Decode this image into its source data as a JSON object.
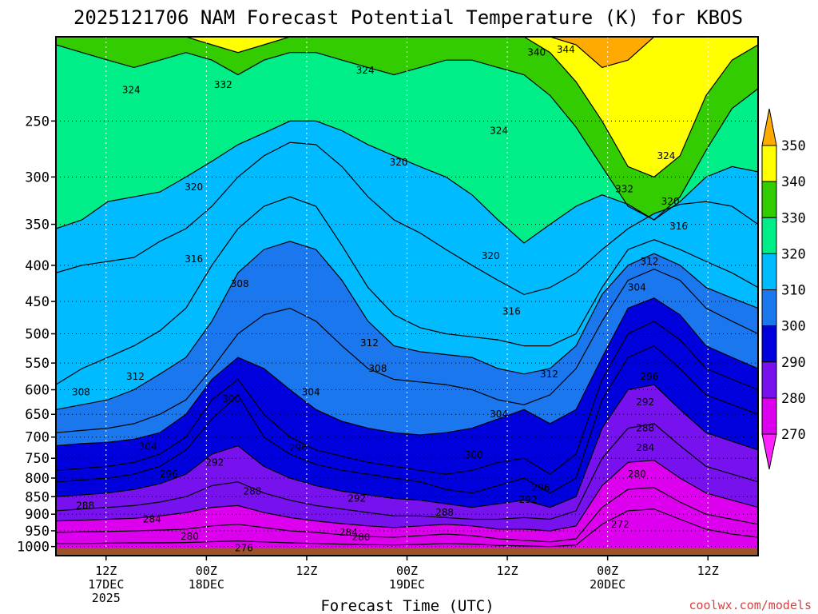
{
  "chart_data": {
    "type": "heatmap",
    "title": "2025121706 NAM Forecast Potential Temperature (K) for KBOS",
    "xlabel": "Forecast Time (UTC)",
    "ylabel": "",
    "y_scale": "log",
    "y_inverted": true,
    "ylim": [
      1030,
      190
    ],
    "y_ticks": [
      250,
      300,
      350,
      400,
      450,
      500,
      550,
      600,
      650,
      700,
      750,
      800,
      850,
      900,
      950,
      1000
    ],
    "x_range_hours": [
      0,
      84
    ],
    "x_ticks": [
      {
        "hour": 6,
        "lines": [
          "12Z",
          "17DEC",
          "2025"
        ]
      },
      {
        "hour": 18,
        "lines": [
          "00Z",
          "18DEC"
        ]
      },
      {
        "hour": 30,
        "lines": [
          "12Z"
        ]
      },
      {
        "hour": 42,
        "lines": [
          "00Z",
          "19DEC"
        ]
      },
      {
        "hour": 54,
        "lines": [
          "12Z"
        ]
      },
      {
        "hour": 66,
        "lines": [
          "00Z",
          "20DEC"
        ]
      },
      {
        "hour": 78,
        "lines": [
          "12Z"
        ]
      }
    ],
    "colorbar": {
      "ticks": [
        350,
        340,
        330,
        320,
        310,
        300,
        290,
        280,
        270
      ],
      "bands": [
        {
          "range": [
            340,
            350
          ],
          "color": "#ffff00"
        },
        {
          "range": [
            330,
            340
          ],
          "color": "#33cc00"
        },
        {
          "range": [
            320,
            330
          ],
          "color": "#00ee88"
        },
        {
          "range": [
            310,
            320
          ],
          "color": "#00bbff"
        },
        {
          "range": [
            300,
            310
          ],
          "color": "#1a77ee"
        },
        {
          "range": [
            290,
            300
          ],
          "color": "#0000dd"
        },
        {
          "range": [
            280,
            290
          ],
          "color": "#7711ee"
        },
        {
          "range": [
            270,
            280
          ],
          "color": "#dd00ee"
        }
      ],
      "over_color": "#ffaa00",
      "under_color": "#ff22ff"
    },
    "series": [
      {
        "theta": 344,
        "p": [
          190,
          190,
          190,
          190,
          190,
          190,
          190,
          190,
          190,
          190,
          190,
          190,
          190,
          190,
          190,
          190,
          190,
          190,
          190,
          190,
          195,
          210,
          205,
          190,
          190,
          190,
          190,
          190
        ]
      },
      {
        "theta": 332,
        "p": [
          190,
          190,
          190,
          190,
          190,
          190,
          195,
          200,
          195,
          190,
          190,
          190,
          190,
          190,
          190,
          190,
          190,
          190,
          190,
          200,
          220,
          250,
          290,
          300,
          280,
          230,
          205,
          195
        ]
      },
      {
        "theta": 324,
        "p": [
          195,
          200,
          205,
          210,
          205,
          200,
          205,
          215,
          205,
          200,
          200,
          205,
          210,
          215,
          210,
          205,
          205,
          210,
          215,
          230,
          255,
          290,
          330,
          345,
          320,
          275,
          240,
          225
        ]
      },
      {
        "theta": 320,
        "p": [
          355,
          345,
          325,
          320,
          315,
          300,
          285,
          270,
          260,
          250,
          250,
          258,
          270,
          280,
          290,
          300,
          318,
          345,
          372,
          350,
          330,
          318,
          328,
          345,
          325,
          300,
          290,
          295
        ]
      },
      {
        "theta": 316,
        "p": [
          410,
          400,
          395,
          390,
          370,
          355,
          330,
          300,
          280,
          268,
          270,
          290,
          320,
          345,
          360,
          380,
          400,
          420,
          440,
          430,
          410,
          380,
          355,
          338,
          328,
          325,
          330,
          350
        ]
      },
      {
        "theta": 312,
        "p": [
          590,
          560,
          540,
          520,
          495,
          460,
          400,
          355,
          330,
          320,
          330,
          375,
          430,
          470,
          490,
          500,
          505,
          510,
          520,
          520,
          500,
          430,
          380,
          368,
          380,
          395,
          410,
          430
        ]
      },
      {
        "theta": 308,
        "p": [
          640,
          630,
          620,
          600,
          570,
          540,
          480,
          410,
          380,
          370,
          380,
          420,
          480,
          520,
          530,
          535,
          540,
          560,
          570,
          560,
          520,
          440,
          400,
          385,
          400,
          430,
          445,
          460
        ]
      },
      {
        "theta": 304,
        "p": [
          690,
          685,
          680,
          670,
          650,
          620,
          560,
          500,
          470,
          460,
          480,
          520,
          560,
          580,
          585,
          590,
          600,
          620,
          630,
          610,
          560,
          480,
          420,
          405,
          420,
          460,
          480,
          500
        ]
      },
      {
        "theta": 300,
        "p": [
          720,
          715,
          712,
          705,
          690,
          650,
          580,
          540,
          560,
          600,
          640,
          665,
          680,
          690,
          695,
          690,
          680,
          660,
          640,
          670,
          640,
          540,
          460,
          445,
          470,
          520,
          540,
          560
        ]
      },
      {
        "theta": 296,
        "p": [
          780,
          775,
          770,
          760,
          740,
          700,
          620,
          580,
          650,
          700,
          730,
          745,
          760,
          770,
          780,
          790,
          780,
          760,
          750,
          790,
          740,
          580,
          500,
          480,
          510,
          560,
          580,
          600
        ]
      },
      {
        "theta": 292,
        "p": [
          810,
          805,
          800,
          790,
          770,
          730,
          660,
          610,
          700,
          740,
          765,
          780,
          790,
          800,
          810,
          830,
          840,
          820,
          800,
          840,
          800,
          620,
          540,
          520,
          560,
          610,
          630,
          650
        ]
      },
      {
        "theta": 288,
        "p": [
          850,
          845,
          840,
          830,
          815,
          790,
          740,
          720,
          770,
          800,
          820,
          835,
          845,
          855,
          860,
          870,
          880,
          870,
          860,
          880,
          850,
          680,
          600,
          590,
          640,
          690,
          710,
          730
        ]
      },
      {
        "theta": 284,
        "p": [
          890,
          885,
          880,
          875,
          865,
          850,
          820,
          810,
          840,
          860,
          875,
          885,
          895,
          905,
          905,
          910,
          915,
          915,
          910,
          915,
          890,
          750,
          680,
          670,
          720,
          770,
          790,
          810
        ]
      },
      {
        "theta": 280,
        "p": [
          920,
          918,
          915,
          912,
          905,
          895,
          880,
          875,
          895,
          910,
          920,
          928,
          935,
          940,
          935,
          930,
          935,
          945,
          945,
          950,
          935,
          820,
          760,
          755,
          800,
          840,
          860,
          880
        ]
      },
      {
        "theta": 276,
        "p": [
          955,
          953,
          952,
          950,
          948,
          945,
          935,
          930,
          940,
          950,
          955,
          962,
          968,
          970,
          965,
          960,
          965,
          975,
          980,
          985,
          975,
          880,
          830,
          825,
          865,
          900,
          915,
          930
        ]
      },
      {
        "theta": 272,
        "p": [
          990,
          990,
          989,
          988,
          988,
          987,
          984,
          982,
          985,
          988,
          990,
          992,
          994,
          995,
          993,
          990,
          992,
          996,
          998,
          1000,
          995,
          930,
          890,
          885,
          915,
          945,
          960,
          970
        ]
      }
    ],
    "contour_labels": [
      {
        "text": "344",
        "hour": 61.0,
        "p": 198
      },
      {
        "text": "340",
        "hour": 57.5,
        "p": 200
      },
      {
        "text": "324",
        "hour": 37.0,
        "p": 212
      },
      {
        "text": "324",
        "hour": 9.0,
        "p": 226
      },
      {
        "text": "332",
        "hour": 20.0,
        "p": 222
      },
      {
        "text": "324",
        "hour": 53.0,
        "p": 258
      },
      {
        "text": "324",
        "hour": 73.0,
        "p": 280
      },
      {
        "text": "320",
        "hour": 41.0,
        "p": 286
      },
      {
        "text": "320",
        "hour": 16.5,
        "p": 310
      },
      {
        "text": "332",
        "hour": 68.0,
        "p": 312
      },
      {
        "text": "320",
        "hour": 73.5,
        "p": 325
      },
      {
        "text": "316",
        "hour": 74.5,
        "p": 352
      },
      {
        "text": "320",
        "hour": 52.0,
        "p": 388
      },
      {
        "text": "316",
        "hour": 16.5,
        "p": 392
      },
      {
        "text": "312",
        "hour": 71.0,
        "p": 395
      },
      {
        "text": "308",
        "hour": 22.0,
        "p": 425
      },
      {
        "text": "304",
        "hour": 69.5,
        "p": 430
      },
      {
        "text": "316",
        "hour": 54.5,
        "p": 465
      },
      {
        "text": "312",
        "hour": 37.5,
        "p": 515
      },
      {
        "text": "308",
        "hour": 38.5,
        "p": 560
      },
      {
        "text": "312",
        "hour": 9.5,
        "p": 575
      },
      {
        "text": "312",
        "hour": 59.0,
        "p": 570
      },
      {
        "text": "296",
        "hour": 71.0,
        "p": 575
      },
      {
        "text": "304",
        "hour": 30.5,
        "p": 605
      },
      {
        "text": "308",
        "hour": 3.0,
        "p": 605
      },
      {
        "text": "300",
        "hour": 21.0,
        "p": 618
      },
      {
        "text": "292",
        "hour": 70.5,
        "p": 625
      },
      {
        "text": "304",
        "hour": 53.0,
        "p": 650
      },
      {
        "text": "288",
        "hour": 70.5,
        "p": 680
      },
      {
        "text": "304",
        "hour": 11.0,
        "p": 722
      },
      {
        "text": "296",
        "hour": 29.0,
        "p": 725
      },
      {
        "text": "284",
        "hour": 70.5,
        "p": 725
      },
      {
        "text": "300",
        "hour": 50.0,
        "p": 742
      },
      {
        "text": "292",
        "hour": 19.0,
        "p": 760
      },
      {
        "text": "296",
        "hour": 13.5,
        "p": 790
      },
      {
        "text": "280",
        "hour": 69.5,
        "p": 790
      },
      {
        "text": "296",
        "hour": 58.0,
        "p": 825
      },
      {
        "text": "288",
        "hour": 23.5,
        "p": 835
      },
      {
        "text": "292",
        "hour": 36.0,
        "p": 855
      },
      {
        "text": "292",
        "hour": 56.5,
        "p": 858
      },
      {
        "text": "288",
        "hour": 3.5,
        "p": 875
      },
      {
        "text": "288",
        "hour": 46.5,
        "p": 895
      },
      {
        "text": "284",
        "hour": 11.5,
        "p": 915
      },
      {
        "text": "272",
        "hour": 67.5,
        "p": 930
      },
      {
        "text": "284",
        "hour": 35.0,
        "p": 955
      },
      {
        "text": "280",
        "hour": 16.0,
        "p": 968
      },
      {
        "text": "280",
        "hour": 36.5,
        "p": 970
      },
      {
        "text": "276",
        "hour": 22.5,
        "p": 1005
      }
    ],
    "terrain_color": "#a0522d"
  },
  "credit": "coolwx.com/models"
}
